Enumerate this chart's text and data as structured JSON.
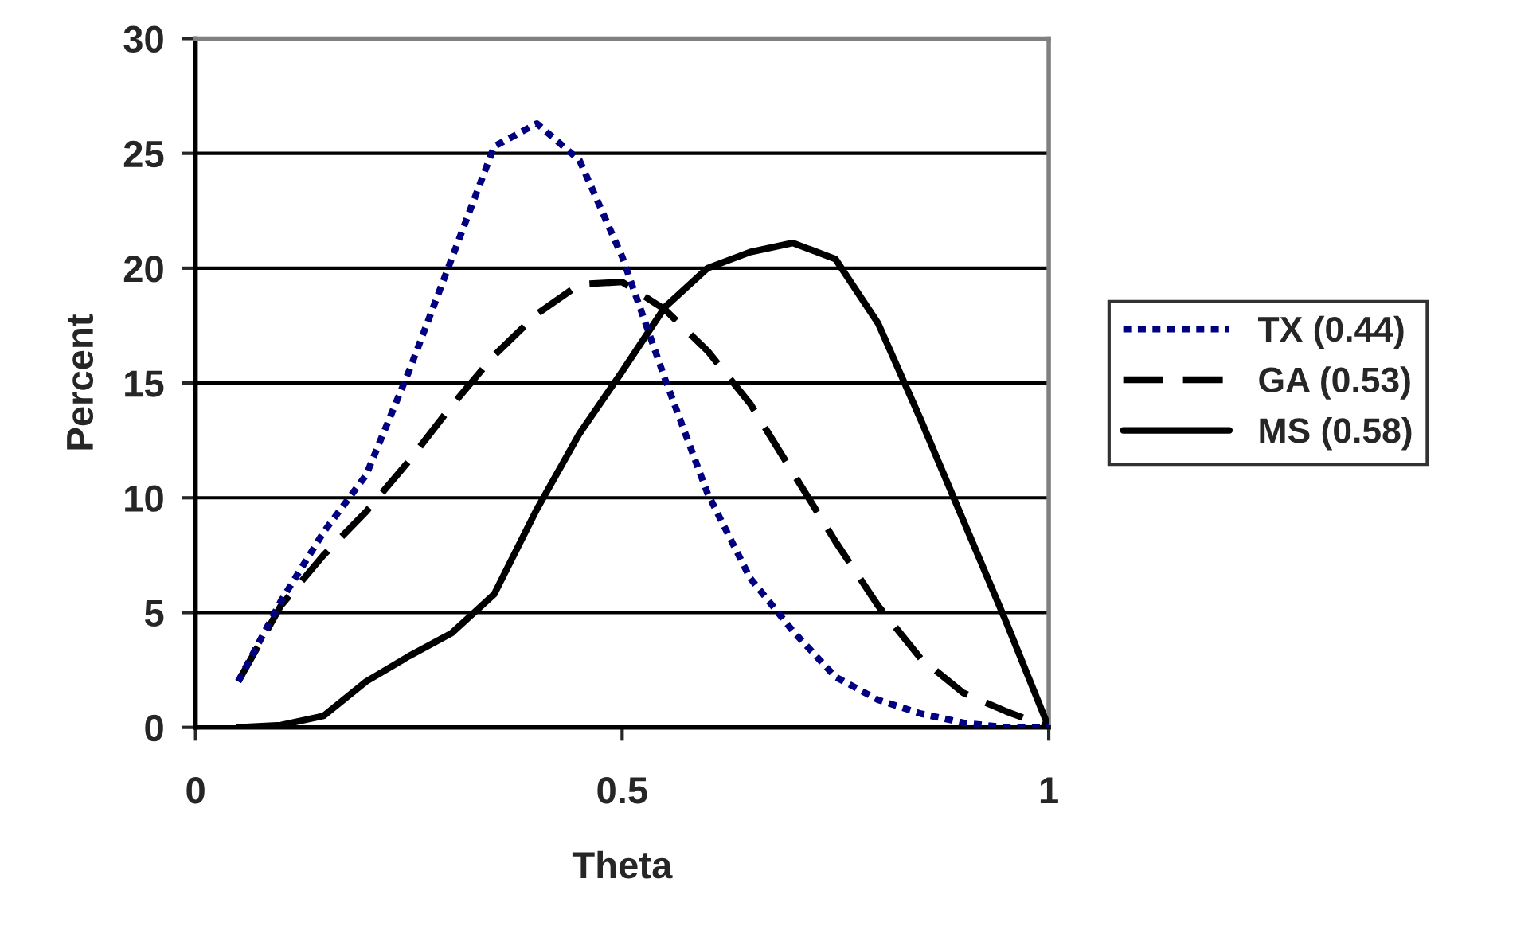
{
  "chart_data": {
    "type": "line",
    "xlabel": "Theta",
    "ylabel": "Percent",
    "xlim": [
      0,
      1
    ],
    "xticks": [
      0,
      0.5,
      1
    ],
    "ylim": [
      0,
      30
    ],
    "yticks": [
      0,
      5,
      10,
      15,
      20,
      25,
      30
    ],
    "grid": "y",
    "legend": "right",
    "x": [
      0.05,
      0.1,
      0.15,
      0.2,
      0.25,
      0.3,
      0.35,
      0.4,
      0.45,
      0.5,
      0.55,
      0.6,
      0.65,
      0.7,
      0.75,
      0.8,
      0.85,
      0.9,
      0.95,
      1.0
    ],
    "series": [
      {
        "name": "TX (0.44)",
        "color": "#000080",
        "line_style": "dotted",
        "values": [
          2,
          5.5,
          8.5,
          11,
          15.5,
          20.4,
          25.3,
          26.3,
          24.7,
          20.5,
          15.2,
          10.2,
          6.5,
          4.2,
          2.2,
          1.2,
          0.6,
          0.2,
          0,
          0
        ]
      },
      {
        "name": "GA (0.53)",
        "color": "#000000",
        "line_style": "dashed",
        "values": [
          2,
          5.3,
          7.5,
          9.4,
          11.6,
          14,
          16.2,
          18,
          19.3,
          19.4,
          18.2,
          16.4,
          14.1,
          11.1,
          8.1,
          5.3,
          3,
          1.5,
          0.7,
          0
        ]
      },
      {
        "name": "MS (0.58)",
        "color": "#000000",
        "line_style": "solid",
        "values": [
          0,
          0.1,
          0.5,
          2,
          3.1,
          4.1,
          5.8,
          9.5,
          12.8,
          15.5,
          18.3,
          20,
          20.7,
          21.1,
          20.4,
          17.6,
          13.4,
          9,
          4.6,
          0
        ]
      }
    ]
  }
}
